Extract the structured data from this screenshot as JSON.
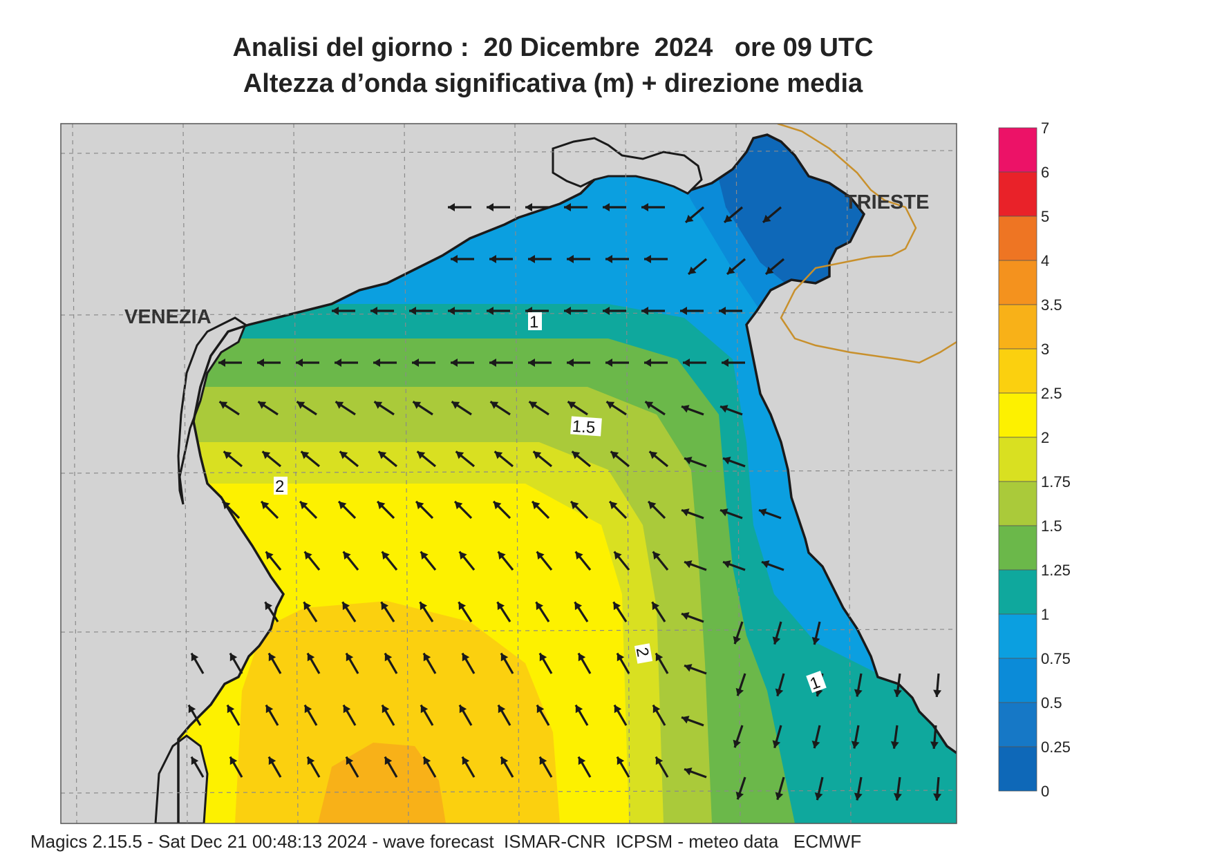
{
  "header": {
    "title_line1": "Analisi del giorno :  20 Dicembre  2024   ore 09 UTC",
    "title_line2": "Altezza d’onda significativa (m) + direzione media"
  },
  "map": {
    "city_labels": [
      "VENEZIA",
      "TRIESTE"
    ],
    "contour_labels": [
      "1",
      "1.5",
      "2",
      "2",
      "1"
    ],
    "colors": {
      "land": "#d3d3d3",
      "coastline": "#1a1a1a",
      "border": "#c8902c",
      "grid": "#8a8a8a",
      "arrow": "#1a1a1a"
    }
  },
  "colorbar": {
    "tick_labels": [
      "7",
      "6",
      "5",
      "4",
      "3.5",
      "3",
      "2.5",
      "2",
      "1.75",
      "1.5",
      "1.25",
      "1",
      "0.75",
      "0.5",
      "0.25",
      "0"
    ],
    "band_colors": [
      "#ec1267",
      "#e92229",
      "#ee7523",
      "#f4921e",
      "#f8b118",
      "#fbd00f",
      "#fdf100",
      "#d9e021",
      "#aaca3a",
      "#6bb84a",
      "#0fa89d",
      "#0b9fe0",
      "#0b8bd8",
      "#1678c6",
      "#0e68b8"
    ]
  },
  "footer": {
    "text": "Magics 2.15.5 - Sat Dec 21 00:48:13 2024 - wave forecast  ISMAR-CNR  ICPSM - meteo data   ECMWF"
  }
}
